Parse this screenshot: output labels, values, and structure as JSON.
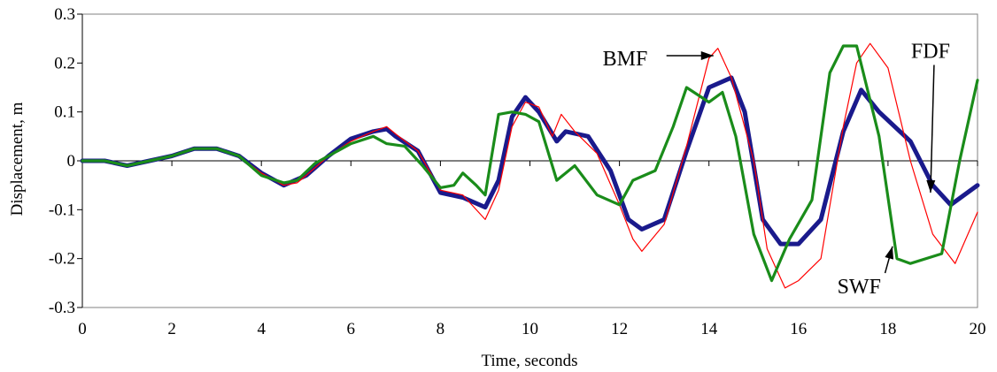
{
  "chart_data": {
    "type": "line",
    "title": "",
    "xlabel": "Time, seconds",
    "ylabel": "Displacement, m",
    "xlim": [
      0,
      20
    ],
    "ylim": [
      -0.3,
      0.3
    ],
    "x_ticks": [
      0,
      2,
      4,
      6,
      8,
      10,
      12,
      14,
      16,
      18,
      20
    ],
    "y_ticks": [
      -0.3,
      -0.2,
      -0.1,
      0,
      0.1,
      0.2,
      0.3
    ],
    "y_tick_labels": [
      "-0.3",
      "-0.2",
      "-0.1",
      "0",
      "0.1",
      "0.2",
      "0.3"
    ],
    "grid": false,
    "legend": "none",
    "series": [
      {
        "name": "BMF",
        "color": "#ff0000",
        "points": [
          [
            0,
            0
          ],
          [
            0.5,
            0
          ],
          [
            1,
            -0.01
          ],
          [
            1.5,
            0
          ],
          [
            2,
            0.01
          ],
          [
            2.5,
            0.025
          ],
          [
            3,
            0.025
          ],
          [
            3.5,
            0.01
          ],
          [
            4,
            -0.025
          ],
          [
            4.5,
            -0.05
          ],
          [
            4.8,
            -0.045
          ],
          [
            5,
            -0.03
          ],
          [
            5.5,
            0.01
          ],
          [
            6,
            0.04
          ],
          [
            6.5,
            0.06
          ],
          [
            6.8,
            0.07
          ],
          [
            7,
            0.055
          ],
          [
            7.5,
            0.02
          ],
          [
            8,
            -0.06
          ],
          [
            8.5,
            -0.07
          ],
          [
            9,
            -0.12
          ],
          [
            9.3,
            -0.06
          ],
          [
            9.6,
            0.07
          ],
          [
            9.9,
            0.12
          ],
          [
            10.2,
            0.11
          ],
          [
            10.5,
            0.05
          ],
          [
            10.7,
            0.095
          ],
          [
            11,
            0.06
          ],
          [
            11.5,
            0.015
          ],
          [
            12,
            -0.09
          ],
          [
            12.3,
            -0.16
          ],
          [
            12.5,
            -0.185
          ],
          [
            13,
            -0.13
          ],
          [
            13.5,
            0.03
          ],
          [
            14,
            0.21
          ],
          [
            14.2,
            0.23
          ],
          [
            14.5,
            0.17
          ],
          [
            15,
            0
          ],
          [
            15.3,
            -0.18
          ],
          [
            15.7,
            -0.26
          ],
          [
            16,
            -0.245
          ],
          [
            16.5,
            -0.2
          ],
          [
            17,
            0.07
          ],
          [
            17.3,
            0.2
          ],
          [
            17.6,
            0.24
          ],
          [
            18,
            0.19
          ],
          [
            18.5,
            0
          ],
          [
            19,
            -0.15
          ],
          [
            19.5,
            -0.21
          ],
          [
            20,
            -0.105
          ]
        ]
      },
      {
        "name": "FDF",
        "color": "#1a1a8c",
        "points": [
          [
            0,
            0
          ],
          [
            0.5,
            0
          ],
          [
            1,
            -0.01
          ],
          [
            1.5,
            0
          ],
          [
            2,
            0.01
          ],
          [
            2.5,
            0.025
          ],
          [
            3,
            0.025
          ],
          [
            3.5,
            0.01
          ],
          [
            4,
            -0.025
          ],
          [
            4.5,
            -0.05
          ],
          [
            5,
            -0.03
          ],
          [
            5.5,
            0.01
          ],
          [
            6,
            0.045
          ],
          [
            6.5,
            0.06
          ],
          [
            6.8,
            0.065
          ],
          [
            7,
            0.05
          ],
          [
            7.5,
            0.02
          ],
          [
            8,
            -0.065
          ],
          [
            8.5,
            -0.075
          ],
          [
            9,
            -0.095
          ],
          [
            9.3,
            -0.04
          ],
          [
            9.6,
            0.09
          ],
          [
            9.9,
            0.13
          ],
          [
            10.2,
            0.1
          ],
          [
            10.6,
            0.04
          ],
          [
            10.8,
            0.06
          ],
          [
            11.3,
            0.05
          ],
          [
            11.8,
            -0.02
          ],
          [
            12.2,
            -0.12
          ],
          [
            12.5,
            -0.14
          ],
          [
            13,
            -0.12
          ],
          [
            13.5,
            0.02
          ],
          [
            14,
            0.15
          ],
          [
            14.5,
            0.17
          ],
          [
            14.8,
            0.1
          ],
          [
            15.2,
            -0.12
          ],
          [
            15.6,
            -0.17
          ],
          [
            16,
            -0.17
          ],
          [
            16.5,
            -0.12
          ],
          [
            17,
            0.06
          ],
          [
            17.4,
            0.145
          ],
          [
            17.8,
            0.1
          ],
          [
            18.5,
            0.04
          ],
          [
            19,
            -0.05
          ],
          [
            19.4,
            -0.09
          ],
          [
            20,
            -0.05
          ]
        ]
      },
      {
        "name": "SWF",
        "color": "#1a8c1a",
        "points": [
          [
            0,
            0
          ],
          [
            0.5,
            0
          ],
          [
            1,
            -0.01
          ],
          [
            1.5,
            0
          ],
          [
            2,
            0.01
          ],
          [
            2.5,
            0.025
          ],
          [
            3,
            0.025
          ],
          [
            3.5,
            0.01
          ],
          [
            4,
            -0.03
          ],
          [
            4.5,
            -0.045
          ],
          [
            4.8,
            -0.04
          ],
          [
            5.2,
            -0.005
          ],
          [
            5.5,
            0.01
          ],
          [
            6,
            0.035
          ],
          [
            6.5,
            0.05
          ],
          [
            6.8,
            0.035
          ],
          [
            7.2,
            0.03
          ],
          [
            7.6,
            -0.01
          ],
          [
            8,
            -0.055
          ],
          [
            8.3,
            -0.05
          ],
          [
            8.5,
            -0.025
          ],
          [
            8.8,
            -0.05
          ],
          [
            9,
            -0.07
          ],
          [
            9.3,
            0.095
          ],
          [
            9.6,
            0.1
          ],
          [
            9.9,
            0.095
          ],
          [
            10.2,
            0.08
          ],
          [
            10.6,
            -0.04
          ],
          [
            11,
            -0.01
          ],
          [
            11.5,
            -0.07
          ],
          [
            12,
            -0.09
          ],
          [
            12.3,
            -0.04
          ],
          [
            12.8,
            -0.02
          ],
          [
            13.2,
            0.07
          ],
          [
            13.5,
            0.15
          ],
          [
            14,
            0.12
          ],
          [
            14.3,
            0.14
          ],
          [
            14.6,
            0.05
          ],
          [
            15,
            -0.15
          ],
          [
            15.4,
            -0.245
          ],
          [
            15.8,
            -0.16
          ],
          [
            16.3,
            -0.08
          ],
          [
            16.7,
            0.18
          ],
          [
            17,
            0.235
          ],
          [
            17.3,
            0.235
          ],
          [
            17.8,
            0.05
          ],
          [
            18.2,
            -0.2
          ],
          [
            18.5,
            -0.21
          ],
          [
            19.2,
            -0.19
          ],
          [
            19.6,
            0
          ],
          [
            20,
            0.165
          ]
        ]
      }
    ],
    "annotations": [
      {
        "text": "BMF",
        "label_x": 13.05,
        "label_y": 0.21,
        "target_x": 14.1,
        "target_y": 0.215
      },
      {
        "text": "FDF",
        "label_x": 18.95,
        "label_y": 0.225,
        "target_x": 18.95,
        "target_y": -0.065
      },
      {
        "text": "SWF",
        "label_x": 17.4,
        "label_y": -0.255,
        "target_x": 18.1,
        "target_y": -0.175
      }
    ]
  }
}
